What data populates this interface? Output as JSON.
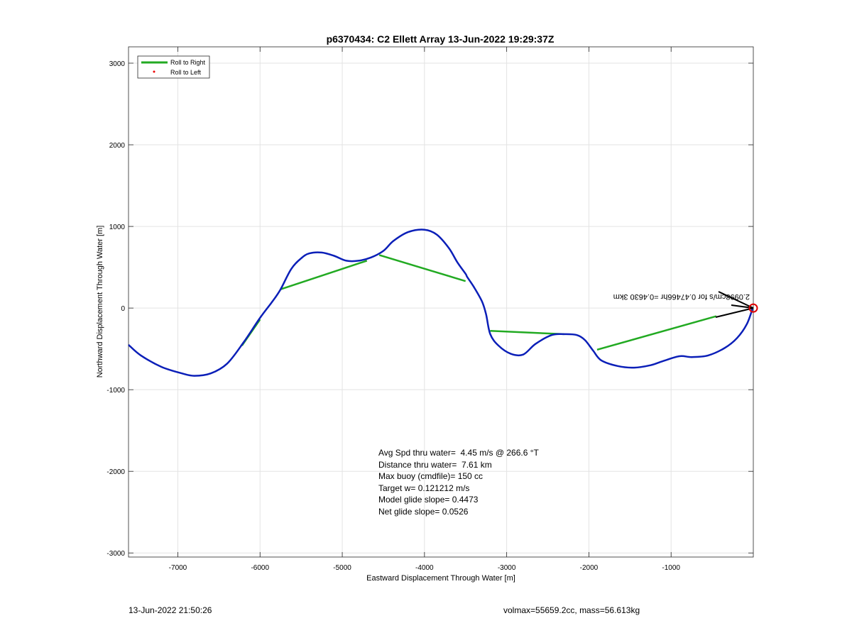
{
  "chart_data": {
    "type": "line",
    "title": "p6370434: C2 Ellett Array 13-Jun-2022 19:29:37Z",
    "xlabel": "Eastward Displacement Through Water [m]",
    "ylabel": "Northward Displacement Through Water [m]",
    "xlim": [
      -7600,
      0
    ],
    "ylim": [
      -3050,
      3200
    ],
    "xticks": [
      -7000,
      -6000,
      -5000,
      -4000,
      -3000,
      -2000,
      -1000
    ],
    "yticks": [
      3000,
      2000,
      1000,
      0,
      -1000,
      -2000,
      -3000
    ],
    "grid": true,
    "legend_position": "top-left",
    "legend": [
      {
        "label": "Roll to Right",
        "color": "#22aa22",
        "marker": "line"
      },
      {
        "label": "Roll to Left",
        "color": "#ee0000",
        "marker": "dot"
      }
    ],
    "series": [
      {
        "color": "#0b1fb8",
        "x": [
          -7600,
          -7450,
          -7200,
          -6950,
          -6800,
          -6600,
          -6400,
          -6200,
          -6000,
          -5850,
          -5750,
          -5620,
          -5500,
          -5400,
          -5250,
          -5100,
          -4950,
          -4800,
          -4650,
          -4500,
          -4380,
          -4200,
          -4000,
          -3850,
          -3700,
          -3600,
          -3500,
          -3480,
          -3400,
          -3300,
          -3250,
          -3200,
          -3100,
          -2950,
          -2800,
          -2650,
          -2450,
          -2300,
          -2150,
          -2050,
          -1950,
          -1850,
          -1650,
          -1450,
          -1250,
          -1100,
          -900,
          -750,
          -550,
          -350,
          -200,
          -80,
          -10
        ],
        "y": [
          -450,
          -580,
          -720,
          -800,
          -830,
          -800,
          -680,
          -420,
          -120,
          80,
          230,
          480,
          610,
          670,
          680,
          640,
          580,
          580,
          620,
          700,
          820,
          930,
          960,
          900,
          730,
          560,
          420,
          380,
          260,
          80,
          -80,
          -320,
          -460,
          -560,
          -570,
          -440,
          -330,
          -320,
          -330,
          -390,
          -520,
          -640,
          -710,
          -730,
          -700,
          -650,
          -590,
          -600,
          -580,
          -490,
          -370,
          -200,
          -10
        ]
      }
    ],
    "roll_right_segments": [
      {
        "x": [
          -5750,
          -4700
        ],
        "y": [
          230,
          580
        ]
      },
      {
        "x": [
          -4550,
          -3500
        ],
        "y": [
          650,
          330
        ]
      },
      {
        "x": [
          -3200,
          -2300
        ],
        "y": [
          -280,
          -320
        ]
      },
      {
        "x": [
          -1900,
          -450
        ],
        "y": [
          -510,
          -100
        ]
      },
      {
        "x": [
          -6000,
          -6220
        ],
        "y": [
          -140,
          -460
        ]
      }
    ],
    "roll_left_points": [],
    "current_marker": {
      "x": 0,
      "y": 0
    },
    "arrow_label": "2.0998cm/s for 0.47466hr =0.4630 3km",
    "stats": [
      "Avg Spd thru water=  4.45 m/s @ 266.6 °T",
      "Distance thru water=  7.61 km",
      "Max buoy (cmdfile)= 150 cc",
      "Target w= 0.121212 m/s",
      "Model glide slope= 0.4473",
      "Net glide slope= 0.0526"
    ]
  },
  "footer": {
    "timestamp": "13-Jun-2022 21:50:26",
    "info": "volmax=55659.2cc, mass=56.613kg"
  }
}
